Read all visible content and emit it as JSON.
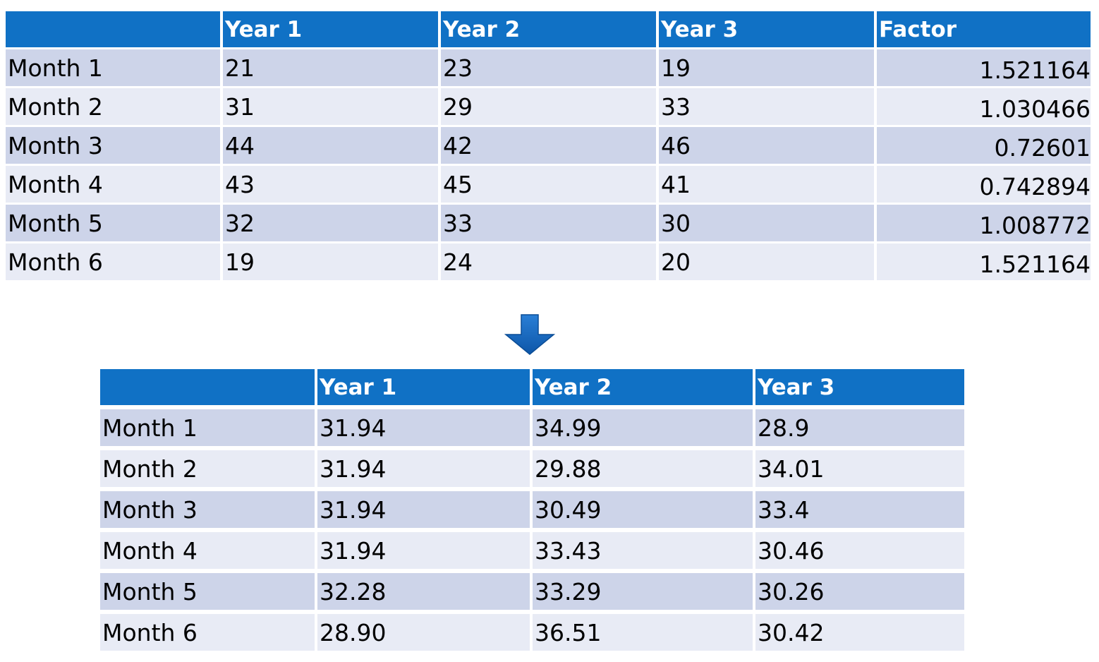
{
  "chart_data": [
    {
      "type": "table",
      "columns": [
        "",
        "Year 1",
        "Year 2",
        "Year 3",
        "Factor"
      ],
      "rows": [
        [
          "Month 1",
          "21",
          "23",
          "19",
          "1.521164"
        ],
        [
          "Month 2",
          "31",
          "29",
          "33",
          "1.030466"
        ],
        [
          "Month 3",
          "44",
          "42",
          "46",
          "0.72601"
        ],
        [
          "Month 4",
          "43",
          "45",
          "41",
          "0.742894"
        ],
        [
          "Month 5",
          "32",
          "33",
          "30",
          "1.008772"
        ],
        [
          "Month 6",
          "19",
          "24",
          "20",
          "1.521164"
        ]
      ]
    },
    {
      "type": "table",
      "columns": [
        "",
        "Year 1",
        "Year 2",
        "Year 3"
      ],
      "rows": [
        [
          "Month 1",
          "31.94",
          "34.99",
          "28.9"
        ],
        [
          "Month 2",
          "31.94",
          "29.88",
          "34.01"
        ],
        [
          "Month 3",
          "31.94",
          "30.49",
          "33.4"
        ],
        [
          "Month 4",
          "31.94",
          "33.43",
          "30.46"
        ],
        [
          "Month 5",
          "32.28",
          "33.29",
          "30.26"
        ],
        [
          "Month 6",
          "28.90",
          "36.51",
          "30.42"
        ]
      ]
    }
  ],
  "colors": {
    "header_bg": "#1071c5",
    "row_odd": "#cdd4e9",
    "row_even": "#e8ebf5",
    "arrow": "#1565c0"
  },
  "icons": {
    "arrow": "down-arrow-icon"
  }
}
